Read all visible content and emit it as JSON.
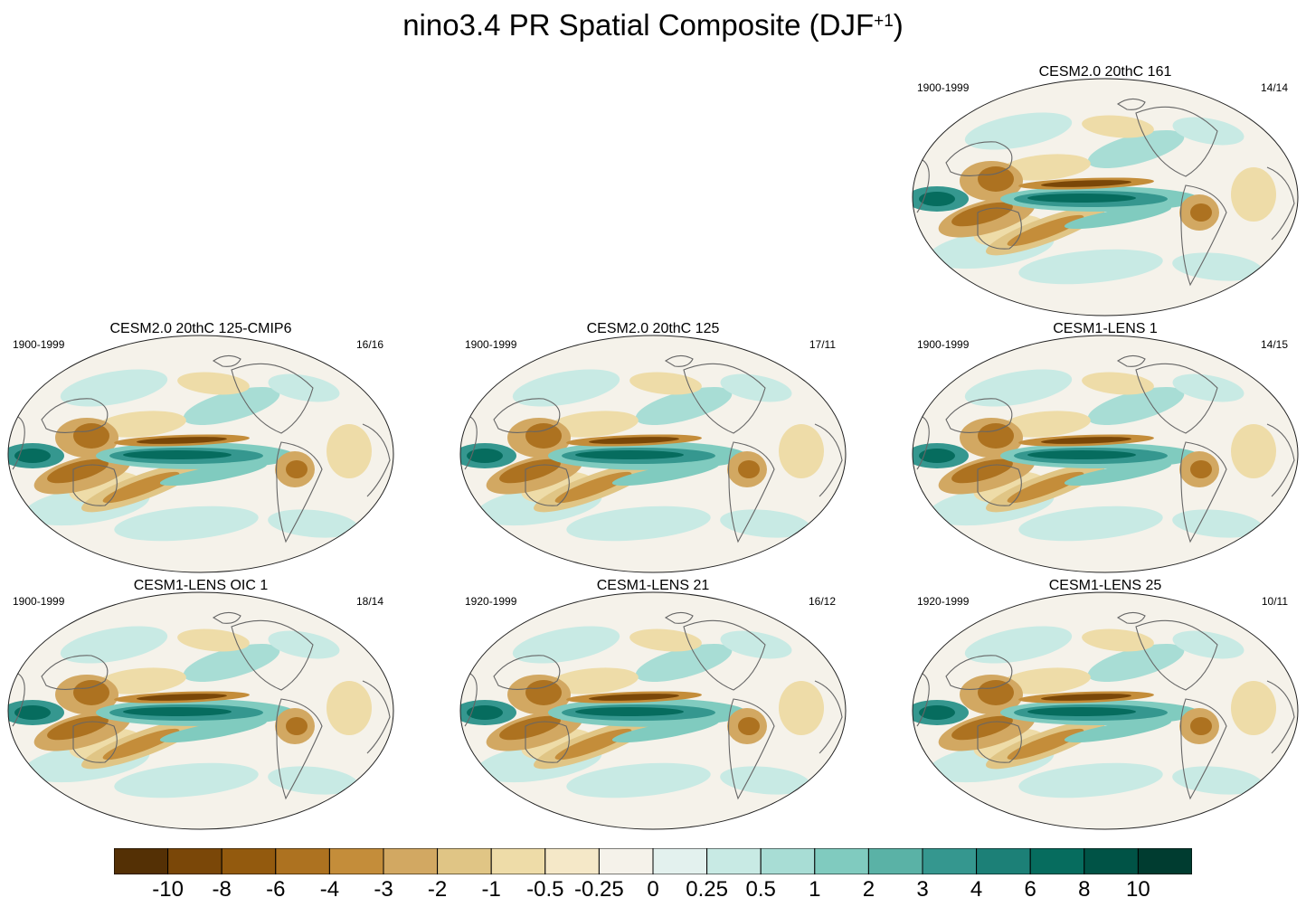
{
  "title": "nino3.4 PR Spatial Composite (DJF",
  "title_superscript": "+1",
  "title_end": ")",
  "panels": [
    {
      "title": "CESM2.0 20thC 161",
      "years": "1900-1999",
      "count": "14/14"
    },
    {
      "title": "CESM2.0 20thC 125-CMIP6",
      "years": "1900-1999",
      "count": "16/16"
    },
    {
      "title": "CESM2.0 20thC 125",
      "years": "1900-1999",
      "count": "17/11"
    },
    {
      "title": "CESM1-LENS 1",
      "years": "1900-1999",
      "count": "14/15"
    },
    {
      "title": "CESM1-LENS OIC 1",
      "years": "1900-1999",
      "count": "18/14"
    },
    {
      "title": "CESM1-LENS 21",
      "years": "1920-1999",
      "count": "16/12"
    },
    {
      "title": "CESM1-LENS 25",
      "years": "1920-1999",
      "count": "10/11"
    }
  ],
  "colorbar": {
    "colors": [
      "#543005",
      "#7a4708",
      "#935a0e",
      "#ad7220",
      "#c48d3a",
      "#d2a862",
      "#e0c585",
      "#eedca8",
      "#f5e8c8",
      "#f5f2ea",
      "#e3f1ee",
      "#c8eae4",
      "#a8ddd5",
      "#80cbbf",
      "#5ab2a6",
      "#35978f",
      "#1c8077",
      "#066c5e",
      "#005346",
      "#003c30"
    ],
    "labels": [
      "-10",
      "-8",
      "-6",
      "-4",
      "-3",
      "-2",
      "-1",
      "-0.5",
      "-0.25",
      "0",
      "0.25",
      "0.5",
      "1",
      "2",
      "3",
      "4",
      "6",
      "8",
      "10"
    ]
  }
}
